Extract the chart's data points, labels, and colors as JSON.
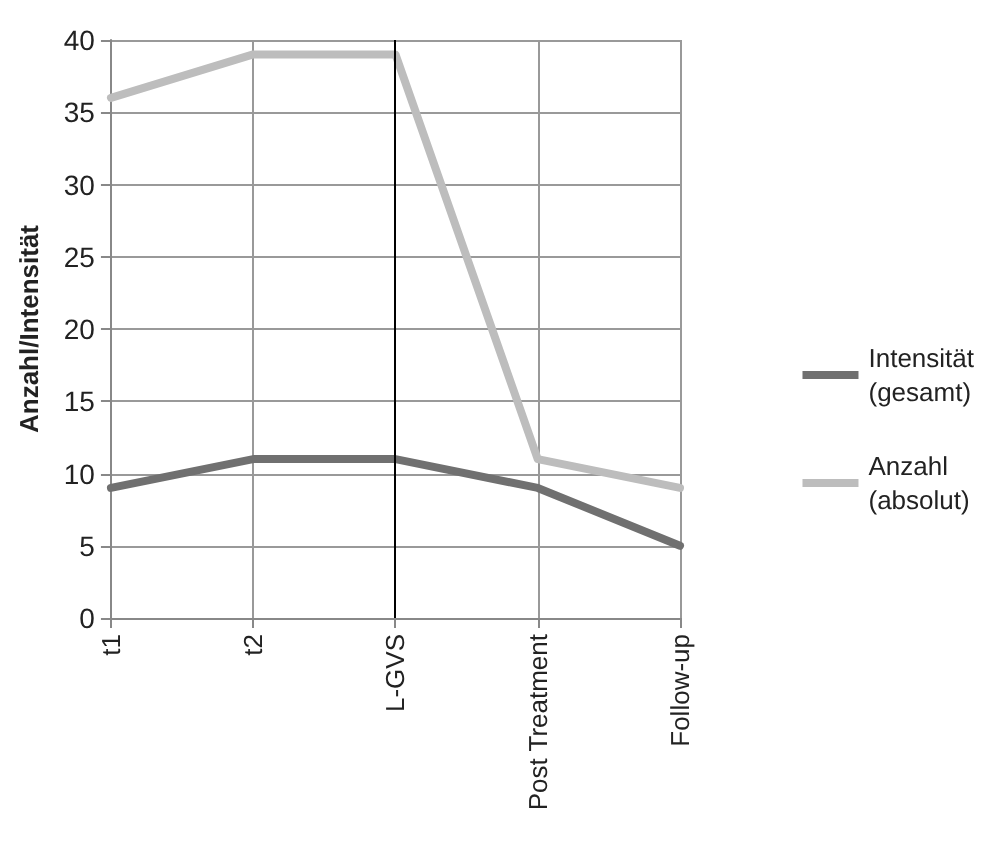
{
  "chart_data": {
    "type": "line",
    "ylabel": "Anzahl/Intensität",
    "categories": [
      "t1",
      "t2",
      "L-GVS",
      "Post Treatment",
      "Follow-up"
    ],
    "series": [
      {
        "name": "Intensität (gesamt)",
        "color": "#707070",
        "values": [
          9,
          11,
          11,
          9,
          5
        ]
      },
      {
        "name": "Anzahl (absolut)",
        "color": "#bdbdbd",
        "values": [
          36,
          39,
          39,
          11,
          9
        ]
      }
    ],
    "ylim": [
      0,
      40
    ],
    "yticks": [
      0,
      5,
      10,
      15,
      20,
      25,
      30,
      35,
      40
    ],
    "grid": true,
    "legend": "right",
    "marker": "none",
    "line_style": "solid",
    "ref_lines": [
      {
        "axis": "x",
        "value": "L-GVS",
        "color": "#000000"
      }
    ]
  }
}
